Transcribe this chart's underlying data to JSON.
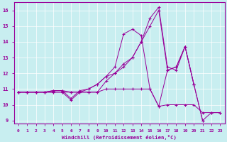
{
  "xlabel": "Windchill (Refroidissement éolien,°C)",
  "bg_color": "#c8eef0",
  "line_color": "#990099",
  "grid_color": "#ffffff",
  "xlim": [
    -0.5,
    23.5
  ],
  "ylim": [
    8.8,
    16.5
  ],
  "xticks": [
    0,
    1,
    2,
    3,
    4,
    5,
    6,
    7,
    8,
    9,
    10,
    11,
    12,
    13,
    14,
    15,
    16,
    17,
    18,
    19,
    20,
    21,
    22,
    23
  ],
  "yticks": [
    9,
    10,
    11,
    12,
    13,
    14,
    15,
    16
  ],
  "series": [
    {
      "x": [
        0,
        1,
        2,
        3,
        4,
        5,
        6,
        7,
        8,
        9,
        10,
        11,
        12,
        13,
        14,
        15,
        16,
        17,
        18,
        19,
        20,
        21,
        22,
        23
      ],
      "y": [
        10.8,
        10.8,
        10.8,
        10.8,
        10.8,
        10.8,
        10.3,
        10.8,
        10.8,
        10.8,
        11.0,
        11.0,
        11.0,
        11.0,
        11.0,
        11.0,
        9.9,
        10.0,
        10.0,
        10.0,
        10.0,
        9.5,
        9.5,
        9.5
      ]
    },
    {
      "x": [
        0,
        1,
        2,
        3,
        4,
        5,
        6,
        7,
        8,
        9,
        10,
        11,
        12,
        13,
        14,
        15,
        16,
        17,
        18,
        19,
        20,
        21,
        22,
        23
      ],
      "y": [
        10.8,
        10.8,
        10.8,
        10.8,
        10.8,
        10.8,
        10.8,
        10.8,
        10.8,
        10.8,
        11.5,
        12.0,
        12.6,
        13.0,
        14.0,
        15.5,
        16.2,
        12.4,
        12.2,
        13.7,
        11.3,
        9.0,
        9.5,
        9.5
      ]
    },
    {
      "x": [
        0,
        1,
        2,
        3,
        4,
        5,
        6,
        7,
        8,
        9,
        10,
        11,
        12,
        13,
        14,
        15,
        16,
        17,
        18,
        19,
        20,
        21
      ],
      "y": [
        10.8,
        10.8,
        10.8,
        10.8,
        10.9,
        10.9,
        10.4,
        10.9,
        11.0,
        11.3,
        11.8,
        12.0,
        12.4,
        13.0,
        14.0,
        15.0,
        16.0,
        12.2,
        12.4,
        13.7,
        11.3,
        9.0
      ]
    },
    {
      "x": [
        0,
        1,
        2,
        3,
        4,
        5,
        6,
        7,
        8,
        9,
        10,
        11,
        12,
        13,
        14,
        15,
        16,
        17,
        18,
        19,
        20
      ],
      "y": [
        10.8,
        10.8,
        10.8,
        10.8,
        10.9,
        10.9,
        10.8,
        10.8,
        11.0,
        11.3,
        11.8,
        12.4,
        14.5,
        14.8,
        14.4,
        11.0,
        9.9,
        12.2,
        12.4,
        13.7,
        11.3
      ]
    }
  ]
}
